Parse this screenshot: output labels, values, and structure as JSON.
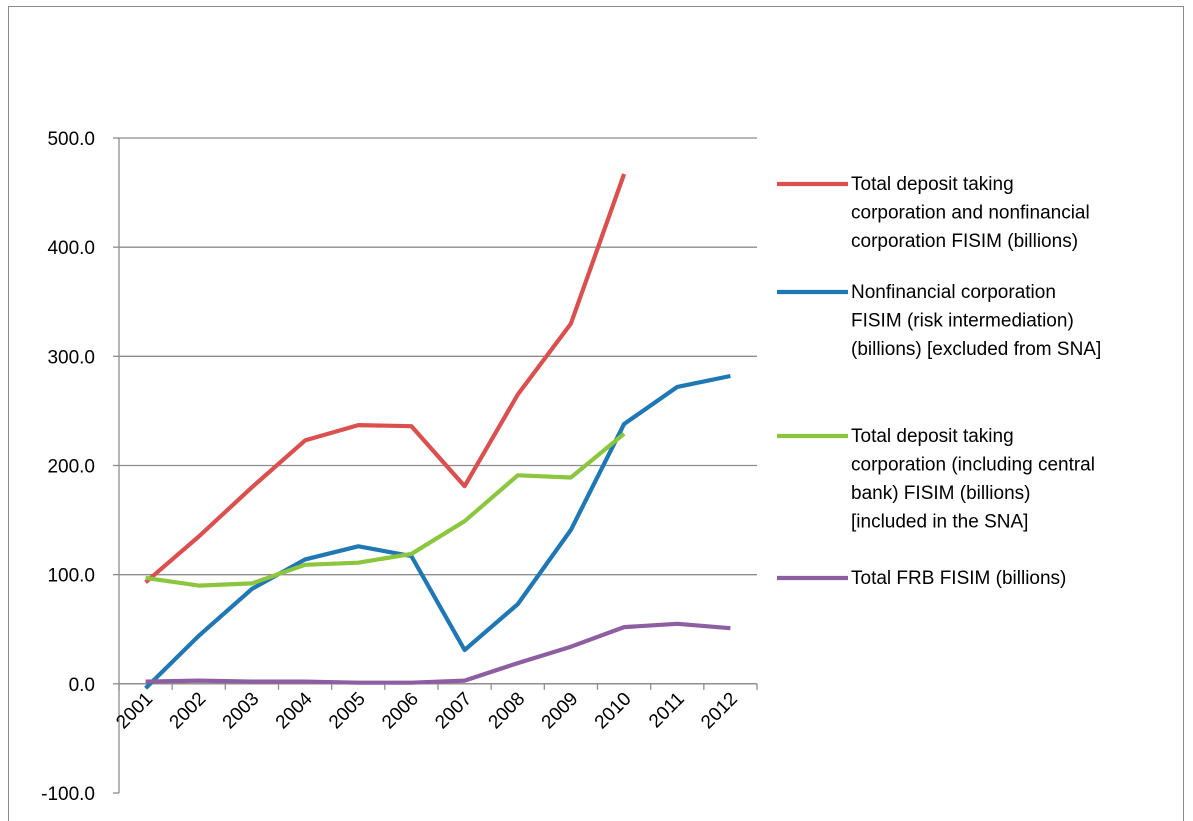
{
  "chart_data": {
    "type": "line",
    "title": "",
    "xlabel": "",
    "ylabel": "",
    "categories": [
      "2001",
      "2002",
      "2003",
      "2004",
      "2005",
      "2006",
      "2007",
      "2008",
      "2009",
      "2010",
      "2011",
      "2012"
    ],
    "ylim": [
      -100,
      500
    ],
    "yticks": [
      -100,
      0,
      100,
      200,
      300,
      400,
      500
    ],
    "ytick_labels": [
      "-100.0",
      "0.0",
      "100.0",
      "200.0",
      "300.0",
      "400.0",
      "500.0"
    ],
    "grid": true,
    "legend_position": "right",
    "series": [
      {
        "name": "Total deposit taking corporation and nonfinancial corporation FISIM (billions)",
        "legend_lines": [
          "Total deposit taking",
          "corporation and nonfinancial",
          "corporation FISIM (billions)"
        ],
        "color": "#d9504e",
        "values": [
          93,
          135,
          180,
          223,
          237,
          236,
          181,
          265,
          330,
          467,
          null,
          null
        ]
      },
      {
        "name": "Nonfinancial corporation FISIM (risk intermediation) (billions) [excluded from SNA]",
        "legend_lines": [
          "Nonfinancial corporation",
          "FISIM (risk intermediation)",
          "(billions) [excluded from SNA]"
        ],
        "color": "#1f77b4",
        "values": [
          -4,
          44,
          87,
          114,
          126,
          117,
          31,
          73,
          141,
          238,
          272,
          282
        ]
      },
      {
        "name": "Total deposit taking corporation (including central bank) FISIM (billions) [included in the SNA]",
        "legend_lines": [
          "Total deposit taking",
          "corporation (including central",
          "bank) FISIM (billions)",
          "[included in the SNA]"
        ],
        "color": "#8cc63f",
        "values": [
          97,
          90,
          92,
          109,
          111,
          119,
          149,
          191,
          189,
          229,
          null,
          null
        ]
      },
      {
        "name": "Total FRB FISIM (billions)",
        "legend_lines": [
          "Total FRB FISIM (billions)"
        ],
        "color": "#8e5ea2",
        "values": [
          2,
          3,
          2,
          2,
          1,
          1,
          3,
          19,
          34,
          52,
          55,
          51
        ]
      }
    ]
  }
}
